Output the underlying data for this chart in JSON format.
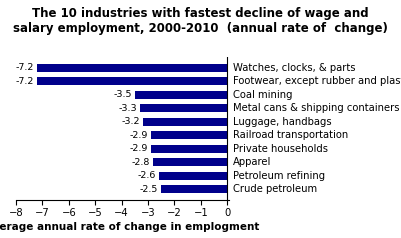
{
  "title": "The 10 industries with fastest decline of wage and\nsalary employment, 2000-2010  (annual rate of  change)",
  "categories": [
    "Crude petroleum",
    "Petroleum refining",
    "Apparel",
    "Private households",
    "Railroad transportation",
    "Luggage, handbags",
    "Metal cans & shipping containers",
    "Coal mining",
    "Footwear, except rubber and plastic",
    "Watches, clocks, & parts"
  ],
  "values": [
    -2.5,
    -2.6,
    -2.8,
    -2.9,
    -2.9,
    -3.2,
    -3.3,
    -3.5,
    -7.2,
    -7.2
  ],
  "value_labels": [
    "-2.5",
    "-2.6",
    "-2.8",
    "-2.9",
    "-2.9",
    "-3.2",
    "-3.3",
    "-3.5",
    "-7.2",
    "-7.2"
  ],
  "bar_color": "#00008B",
  "xlabel": "Average annual rate of change in emplogment",
  "xlim": [
    -8,
    0.05
  ],
  "xticks": [
    -8,
    -7,
    -6,
    -5,
    -4,
    -3,
    -2,
    -1,
    0
  ],
  "title_fontsize": 8.5,
  "label_fontsize": 7.2,
  "xlabel_fontsize": 7.5,
  "value_label_fontsize": 6.8,
  "bar_height": 0.62
}
